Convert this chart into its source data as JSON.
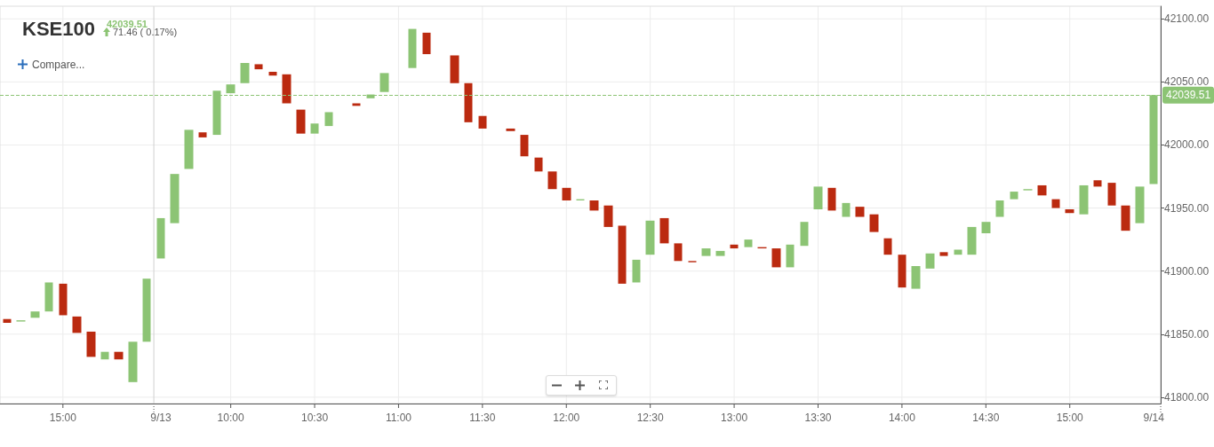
{
  "chart_data": {
    "type": "candlestick",
    "title": "KSE100",
    "subtitle": "42039.51",
    "annotations": [
      "71.46 ( 0.17%)",
      "Compare..."
    ],
    "categories": [
      null,
      null,
      null,
      null,
      "15:00",
      null,
      null,
      null,
      null,
      null,
      null,
      "9/13",
      null,
      null,
      null,
      null,
      "10:00",
      null,
      null,
      null,
      null,
      null,
      "10:30",
      null,
      null,
      null,
      null,
      null,
      "11:00",
      null,
      null,
      null,
      null,
      null,
      "11:30",
      null,
      null,
      null,
      null,
      null,
      "12:00",
      null,
      null,
      null,
      null,
      null,
      "12:30",
      null,
      null,
      null,
      null,
      null,
      "13:00",
      null,
      null,
      null,
      null,
      null,
      "13:30",
      null,
      null,
      null,
      null,
      null,
      "14:00",
      null,
      null,
      null,
      null,
      null,
      "14:30",
      null,
      null,
      null,
      null,
      null,
      "15:00",
      null,
      null,
      null,
      null,
      null,
      "9/14"
    ],
    "ohlc": [
      [
        41862,
        41862,
        41859,
        41859
      ],
      [
        41860,
        41861,
        41860,
        41861
      ],
      [
        41863,
        41868,
        41863,
        41868
      ],
      [
        41868,
        41891,
        41868,
        41891
      ],
      [
        41890,
        41890,
        41865,
        41865
      ],
      [
        41864,
        41864,
        41851,
        41851
      ],
      [
        41852,
        41852,
        41832,
        41832
      ],
      [
        41830,
        41836,
        41830,
        41836
      ],
      [
        41836,
        41836,
        41830,
        41830
      ],
      [
        41812,
        41844,
        41812,
        41844
      ],
      [
        41844,
        41894,
        41844,
        41894
      ],
      [
        41910,
        41942,
        41910,
        41942
      ],
      [
        41938,
        41977,
        41938,
        41977
      ],
      [
        41981,
        42012,
        41981,
        42012
      ],
      [
        42010,
        42010,
        42006,
        42006
      ],
      [
        42008,
        42043,
        42008,
        42043
      ],
      [
        42041,
        42048,
        42041,
        42048
      ],
      [
        42049,
        42065,
        42049,
        42065
      ],
      [
        42064,
        42064,
        42060,
        42060
      ],
      [
        42058,
        42058,
        42055,
        42055
      ],
      [
        42056,
        42056,
        42033,
        42033
      ],
      [
        42028,
        42028,
        42009,
        42009
      ],
      [
        42009,
        42017,
        42009,
        42017
      ],
      [
        42015,
        42026,
        42015,
        42026
      ],
      null,
      [
        42033,
        42033,
        42031,
        42031
      ],
      [
        42037,
        42040,
        42037,
        42040
      ],
      [
        42042,
        42057,
        42042,
        42057
      ],
      null,
      [
        42061,
        42092,
        42061,
        42092
      ],
      [
        42089,
        42089,
        42072,
        42072
      ],
      null,
      [
        42071,
        42071,
        42049,
        42049
      ],
      [
        42049,
        42049,
        42018,
        42018
      ],
      [
        42023,
        42023,
        42013,
        42013
      ],
      null,
      [
        42013,
        42013,
        42011,
        42011
      ],
      [
        42008,
        42008,
        41991,
        41991
      ],
      [
        41990,
        41990,
        41979,
        41979
      ],
      [
        41979,
        41979,
        41965,
        41965
      ],
      [
        41966,
        41966,
        41956,
        41956
      ],
      [
        41956,
        41957,
        41956,
        41957
      ],
      [
        41956,
        41956,
        41948,
        41948
      ],
      [
        41952,
        41952,
        41935,
        41935
      ],
      [
        41936,
        41936,
        41890,
        41890
      ],
      [
        41891,
        41909,
        41891,
        41909
      ],
      [
        41913,
        41940,
        41913,
        41940
      ],
      [
        41942,
        41942,
        41922,
        41922
      ],
      [
        41922,
        41922,
        41908,
        41908
      ],
      [
        41908,
        41908,
        41907,
        41907
      ],
      [
        41912,
        41918,
        41912,
        41918
      ],
      [
        41912,
        41916,
        41912,
        41916
      ],
      [
        41921,
        41921,
        41918,
        41918
      ],
      [
        41919,
        41925,
        41919,
        41925
      ],
      [
        41919,
        41919,
        41918,
        41918
      ],
      [
        41918,
        41918,
        41903,
        41903
      ],
      [
        41903,
        41921,
        41903,
        41921
      ],
      [
        41920,
        41939,
        41920,
        41939
      ],
      [
        41949,
        41967,
        41949,
        41967
      ],
      [
        41966,
        41966,
        41948,
        41948
      ],
      [
        41943,
        41954,
        41943,
        41954
      ],
      [
        41951,
        41951,
        41943,
        41943
      ],
      [
        41945,
        41945,
        41931,
        41931
      ],
      [
        41926,
        41926,
        41913,
        41913
      ],
      [
        41913,
        41913,
        41887,
        41887
      ],
      [
        41886,
        41904,
        41886,
        41904
      ],
      [
        41902,
        41914,
        41902,
        41914
      ],
      [
        41915,
        41915,
        41912,
        41912
      ],
      [
        41913,
        41917,
        41913,
        41917
      ],
      [
        41913,
        41935,
        41913,
        41935
      ],
      [
        41930,
        41939,
        41930,
        41939
      ],
      [
        41943,
        41956,
        41943,
        41956
      ],
      [
        41957,
        41963,
        41957,
        41963
      ],
      [
        41964,
        41965,
        41964,
        41965
      ],
      [
        41968,
        41968,
        41960,
        41960
      ],
      [
        41957,
        41957,
        41950,
        41950
      ],
      [
        41949,
        41949,
        41946,
        41946
      ],
      [
        41945,
        41968,
        41945,
        41968
      ],
      [
        41972,
        41972,
        41967,
        41967
      ],
      [
        41970,
        41970,
        41952,
        41952
      ],
      [
        41952,
        41952,
        41932,
        41932
      ],
      [
        41938,
        41967,
        41938,
        41967
      ],
      [
        41969,
        42039.51,
        41969,
        42039.51
      ]
    ],
    "colors": [
      "#bb2a10",
      "#8cc474",
      "#8cc474",
      "#8cc474",
      "#bb2a10",
      "#bb2a10",
      "#bb2a10",
      "#8cc474",
      "#bb2a10",
      "#8cc474",
      "#8cc474",
      "#8cc474",
      "#8cc474",
      "#8cc474",
      "#bb2a10",
      "#8cc474",
      "#8cc474",
      "#8cc474",
      "#bb2a10",
      "#bb2a10",
      "#bb2a10",
      "#bb2a10",
      "#8cc474",
      "#8cc474",
      null,
      "#bb2a10",
      "#8cc474",
      "#8cc474",
      null,
      "#8cc474",
      "#bb2a10",
      null,
      "#bb2a10",
      "#bb2a10",
      "#bb2a10",
      null,
      "#bb2a10",
      "#bb2a10",
      "#bb2a10",
      "#bb2a10",
      "#bb2a10",
      "#8cc474",
      "#bb2a10",
      "#bb2a10",
      "#bb2a10",
      "#8cc474",
      "#8cc474",
      "#bb2a10",
      "#bb2a10",
      "#bb2a10",
      "#8cc474",
      "#8cc474",
      "#bb2a10",
      "#8cc474",
      "#bb2a10",
      "#bb2a10",
      "#8cc474",
      "#8cc474",
      "#8cc474",
      "#bb2a10",
      "#8cc474",
      "#bb2a10",
      "#bb2a10",
      "#bb2a10",
      "#bb2a10",
      "#8cc474",
      "#8cc474",
      "#bb2a10",
      "#8cc474",
      "#8cc474",
      "#8cc474",
      "#8cc474",
      "#8cc474",
      "#8cc474",
      "#bb2a10",
      "#bb2a10",
      "#bb2a10",
      "#8cc474",
      "#bb2a10",
      "#bb2a10",
      "#bb2a10",
      "#8cc474",
      "#8cc474"
    ],
    "ylim": [
      41795,
      42110
    ],
    "yticks": [
      {
        "value": 41800,
        "label": "41800.00"
      },
      {
        "value": 41850,
        "label": "41850.00"
      },
      {
        "value": 41900,
        "label": "41900.00"
      },
      {
        "value": 41950,
        "label": "41950.00"
      },
      {
        "value": 42000,
        "label": "42000.00"
      },
      {
        "value": 42050,
        "label": "42050.00"
      },
      {
        "value": 42100,
        "label": "42100.00"
      }
    ],
    "ref_lines": [
      {
        "axis": "y",
        "value": 42039.51,
        "label": "42039.51",
        "color": "#8cc474",
        "line_style": "dashed"
      }
    ],
    "grid": true
  }
}
